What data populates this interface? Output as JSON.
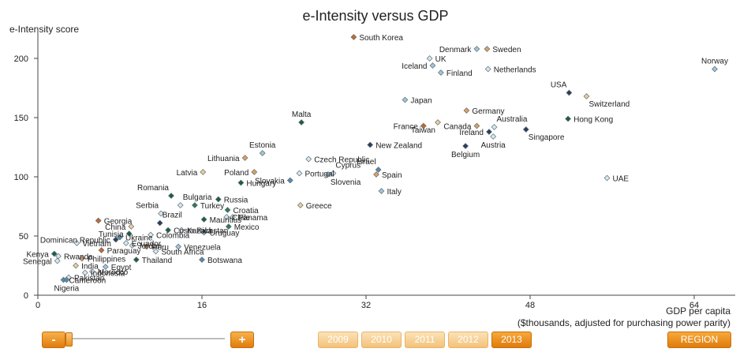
{
  "chart_data": {
    "type": "scatter",
    "title": "e-Intensity versus GDP",
    "ylabel": "e-Intensity score",
    "xlabel_line1": "GDP per capita",
    "xlabel_line2": "($thousands, adjusted for purchasing power parity)",
    "xlim": [
      0,
      68
    ],
    "ylim": [
      0,
      220
    ],
    "xticks": [
      0,
      16,
      32,
      48,
      64
    ],
    "yticks": [
      0,
      50,
      100,
      150,
      200
    ],
    "grid": false,
    "points": [
      {
        "label": "South Korea",
        "x": 30.8,
        "y": 218,
        "color": "#c8682a"
      },
      {
        "label": "Denmark",
        "x": 42.8,
        "y": 208,
        "color": "#a0c4d8"
      },
      {
        "label": "Sweden",
        "x": 43.8,
        "y": 208,
        "color": "#e0a060"
      },
      {
        "label": "Norway",
        "x": 66.0,
        "y": 191,
        "color": "#a0c4d8"
      },
      {
        "label": "UK",
        "x": 38.2,
        "y": 200,
        "color": "#d8e8ef"
      },
      {
        "label": "Iceland",
        "x": 38.5,
        "y": 194,
        "color": "#a0c4d8"
      },
      {
        "label": "Finland",
        "x": 39.3,
        "y": 188,
        "color": "#a0c4d8"
      },
      {
        "label": "Netherlands",
        "x": 43.9,
        "y": 191,
        "color": "#d8e8ef"
      },
      {
        "label": "USA",
        "x": 51.8,
        "y": 171,
        "color": "#2a3e5a"
      },
      {
        "label": "Switzerland",
        "x": 53.5,
        "y": 168,
        "color": "#f3cb96"
      },
      {
        "label": "Japan",
        "x": 35.8,
        "y": 165,
        "color": "#a0c4d8"
      },
      {
        "label": "Germany",
        "x": 41.8,
        "y": 156,
        "color": "#e0a060"
      },
      {
        "label": "Malta",
        "x": 25.7,
        "y": 146,
        "color": "#1e5c46"
      },
      {
        "label": "Hong Kong",
        "x": 51.7,
        "y": 149,
        "color": "#1e5c46"
      },
      {
        "label": "Australia",
        "x": 44.5,
        "y": 142,
        "color": "#d8e8ef"
      },
      {
        "label": "France",
        "x": 37.6,
        "y": 143,
        "color": "#c8682a"
      },
      {
        "label": "Taiwan",
        "x": 39.0,
        "y": 146,
        "color": "#f3cb96"
      },
      {
        "label": "Canada",
        "x": 42.8,
        "y": 143,
        "color": "#e0a060"
      },
      {
        "label": "Ireland",
        "x": 44.0,
        "y": 138,
        "color": "#2a3e5a"
      },
      {
        "label": "Austria",
        "x": 44.4,
        "y": 134,
        "color": "#d8e8ef"
      },
      {
        "label": "Singapore",
        "x": 47.6,
        "y": 140,
        "color": "#2a3e5a"
      },
      {
        "label": "New Zealand",
        "x": 32.4,
        "y": 127,
        "color": "#2a3e5a"
      },
      {
        "label": "Belgium",
        "x": 41.7,
        "y": 126,
        "color": "#2a3e5a"
      },
      {
        "label": "Estonia",
        "x": 21.9,
        "y": 120,
        "color": "#a0c4d8"
      },
      {
        "label": "Lithuania",
        "x": 20.2,
        "y": 116,
        "color": "#e0a060"
      },
      {
        "label": "Czech Republic",
        "x": 26.4,
        "y": 115,
        "color": "#d8e8ef"
      },
      {
        "label": "Latvia",
        "x": 16.1,
        "y": 104,
        "color": "#f3cb96"
      },
      {
        "label": "Poland",
        "x": 21.1,
        "y": 104,
        "color": "#e0a060"
      },
      {
        "label": "Portugal",
        "x": 25.5,
        "y": 103,
        "color": "#d8e8ef"
      },
      {
        "label": "Slovakia",
        "x": 24.6,
        "y": 97,
        "color": "#5a8aaa"
      },
      {
        "label": "Cyprus",
        "x": 28.8,
        "y": 103,
        "color": "#d8e8ef"
      },
      {
        "label": "Slovenia",
        "x": 28.3,
        "y": 102,
        "color": "#a0c4d8"
      },
      {
        "label": "Israel",
        "x": 33.2,
        "y": 106,
        "color": "#5a8aaa"
      },
      {
        "label": "Spain",
        "x": 33.0,
        "y": 102,
        "color": "#e0a060"
      },
      {
        "label": "Hungary",
        "x": 19.8,
        "y": 95,
        "color": "#1e5c46"
      },
      {
        "label": "UAE",
        "x": 55.5,
        "y": 99,
        "color": "#d8e8ef"
      },
      {
        "label": "Italy",
        "x": 33.5,
        "y": 88,
        "color": "#a0c4d8"
      },
      {
        "label": "Romania",
        "x": 13.0,
        "y": 84,
        "color": "#1e5c46"
      },
      {
        "label": "Bulgaria",
        "x": 13.9,
        "y": 76,
        "color": "#d8e8ef"
      },
      {
        "label": "Russia",
        "x": 17.6,
        "y": 81,
        "color": "#1e5c46"
      },
      {
        "label": "Turkey",
        "x": 15.3,
        "y": 76,
        "color": "#2e7a5a"
      },
      {
        "label": "Greece",
        "x": 25.6,
        "y": 76,
        "color": "#f3cb96"
      },
      {
        "label": "Croatia",
        "x": 18.5,
        "y": 72,
        "color": "#2e7a5a"
      },
      {
        "label": "Mauritius",
        "x": 16.2,
        "y": 64,
        "color": "#1e5c46"
      },
      {
        "label": "Chile",
        "x": 18.4,
        "y": 66,
        "color": "#d8e8ef"
      },
      {
        "label": "Panama",
        "x": 19.0,
        "y": 66,
        "color": "#d8e8ef"
      },
      {
        "label": "Georgia",
        "x": 5.9,
        "y": 63,
        "color": "#c8682a"
      },
      {
        "label": "China",
        "x": 9.1,
        "y": 58,
        "color": "#f3cb96"
      },
      {
        "label": "Serbia",
        "x": 12.0,
        "y": 69,
        "color": "#d8e8ef"
      },
      {
        "label": "Brazil",
        "x": 11.9,
        "y": 61,
        "color": "#2a3e5a"
      },
      {
        "label": "Mexico",
        "x": 18.6,
        "y": 58,
        "color": "#2e7a5a"
      },
      {
        "label": "Costa Rica",
        "x": 12.7,
        "y": 55,
        "color": "#1e5c46"
      },
      {
        "label": "Kazakhstan",
        "x": 14.0,
        "y": 55,
        "color": "#d8e8ef"
      },
      {
        "label": "Uruguay",
        "x": 16.2,
        "y": 53,
        "color": "#a0c4d8"
      },
      {
        "label": "Tunisia",
        "x": 8.9,
        "y": 52,
        "color": "#1e5c46"
      },
      {
        "label": "Colombia",
        "x": 11.0,
        "y": 51,
        "color": "#d8e8ef"
      },
      {
        "label": "Dominican Republic",
        "x": 7.6,
        "y": 47,
        "color": "#2a3e5a"
      },
      {
        "label": "Ukraine",
        "x": 8.0,
        "y": 49,
        "color": "#5a8aaa"
      },
      {
        "label": "Vietnam",
        "x": 3.8,
        "y": 44,
        "color": "#d8e8ef"
      },
      {
        "label": "Ecuador",
        "x": 8.6,
        "y": 44,
        "color": "#d8e8ef"
      },
      {
        "label": "Jordan",
        "x": 9.2,
        "y": 42,
        "color": "#d8e8ef"
      },
      {
        "label": "Peru",
        "x": 10.6,
        "y": 41,
        "color": "#e0a060"
      },
      {
        "label": "Venezuela",
        "x": 13.7,
        "y": 41,
        "color": "#a0c4d8"
      },
      {
        "label": "South Africa",
        "x": 11.5,
        "y": 37,
        "color": "#d8e8ef"
      },
      {
        "label": "Paraguay",
        "x": 6.2,
        "y": 38,
        "color": "#c8682a"
      },
      {
        "label": "Kenya",
        "x": 1.6,
        "y": 35,
        "color": "#1e5c46"
      },
      {
        "label": "Rwanda",
        "x": 2.0,
        "y": 33,
        "color": "#d8e8ef"
      },
      {
        "label": "Philippines",
        "x": 4.3,
        "y": 31,
        "color": "#e0a060"
      },
      {
        "label": "Thailand",
        "x": 9.6,
        "y": 30,
        "color": "#1e5c46"
      },
      {
        "label": "Botswana",
        "x": 16.0,
        "y": 30,
        "color": "#5a8aaa"
      },
      {
        "label": "India",
        "x": 3.7,
        "y": 25,
        "color": "#f3cb96"
      },
      {
        "label": "Egypt",
        "x": 6.6,
        "y": 24,
        "color": "#a0c4d8"
      },
      {
        "label": "Senegal",
        "x": 1.9,
        "y": 29,
        "color": "#d8e8ef"
      },
      {
        "label": "Morocco",
        "x": 5.3,
        "y": 20,
        "color": "#d8e8ef"
      },
      {
        "label": "Indonesia",
        "x": 4.6,
        "y": 19,
        "color": "#d8e8ef"
      },
      {
        "label": "Pakistan",
        "x": 3.0,
        "y": 15,
        "color": "#d8e8ef"
      },
      {
        "label": "Cameroon",
        "x": 2.5,
        "y": 13,
        "color": "#5a8aaa"
      },
      {
        "label": "Nigeria",
        "x": 2.8,
        "y": 13,
        "color": "#5a8aaa"
      }
    ],
    "label_placement": {
      "South Korea": "r",
      "Denmark": "l",
      "Sweden": "r",
      "Norway": "t",
      "UK": "r",
      "Iceland": "l",
      "Finland": "r",
      "Netherlands": "r",
      "USA": "tl",
      "Switzerland": "br",
      "Japan": "r",
      "Germany": "r",
      "Malta": "t",
      "Hong Kong": "r",
      "Australia": "tr",
      "France": "l",
      "Taiwan": "bl",
      "Canada": "l",
      "Ireland": "l",
      "Austria": "b",
      "Singapore": "br",
      "New Zealand": "r",
      "Belgium": "b",
      "Estonia": "t",
      "Lithuania": "l",
      "Czech Republic": "r",
      "Latvia": "l",
      "Poland": "l",
      "Portugal": "r",
      "Slovakia": "l",
      "Cyprus": "tr",
      "Slovenia": "br",
      "Israel": "tl",
      "Spain": "r",
      "Hungary": "r",
      "UAE": "r",
      "Italy": "r",
      "Romania": "tl",
      "Bulgaria": "tr",
      "Russia": "r",
      "Turkey": "r",
      "Greece": "r",
      "Croatia": "r",
      "Mauritius": "r",
      "Chile": "r",
      "Panama": "r",
      "Georgia": "r",
      "China": "l",
      "Serbia": "tl",
      "Brazil": "tr",
      "Mexico": "r",
      "Costa Rica": "r",
      "Kazakhstan": "r",
      "Uruguay": "r",
      "Tunisia": "l",
      "Colombia": "r",
      "Dominican Republic": "l",
      "Ukraine": "r",
      "Vietnam": "r",
      "Ecuador": "r",
      "Jordan": "r",
      "Peru": "r",
      "Venezuela": "r",
      "South Africa": "r",
      "Paraguay": "r",
      "Kenya": "l",
      "Rwanda": "r",
      "Philippines": "r",
      "Thailand": "r",
      "Botswana": "r",
      "India": "r",
      "Egypt": "r",
      "Senegal": "l",
      "Morocco": "r",
      "Indonesia": "r",
      "Pakistan": "r",
      "Cameroon": "r",
      "Nigeria": "b"
    }
  },
  "controls": {
    "zoom_out_label": "-",
    "zoom_in_label": "+",
    "years": [
      "2009",
      "2010",
      "2011",
      "2012",
      "2013"
    ],
    "active_year": "2013",
    "region_label": "REGION"
  }
}
